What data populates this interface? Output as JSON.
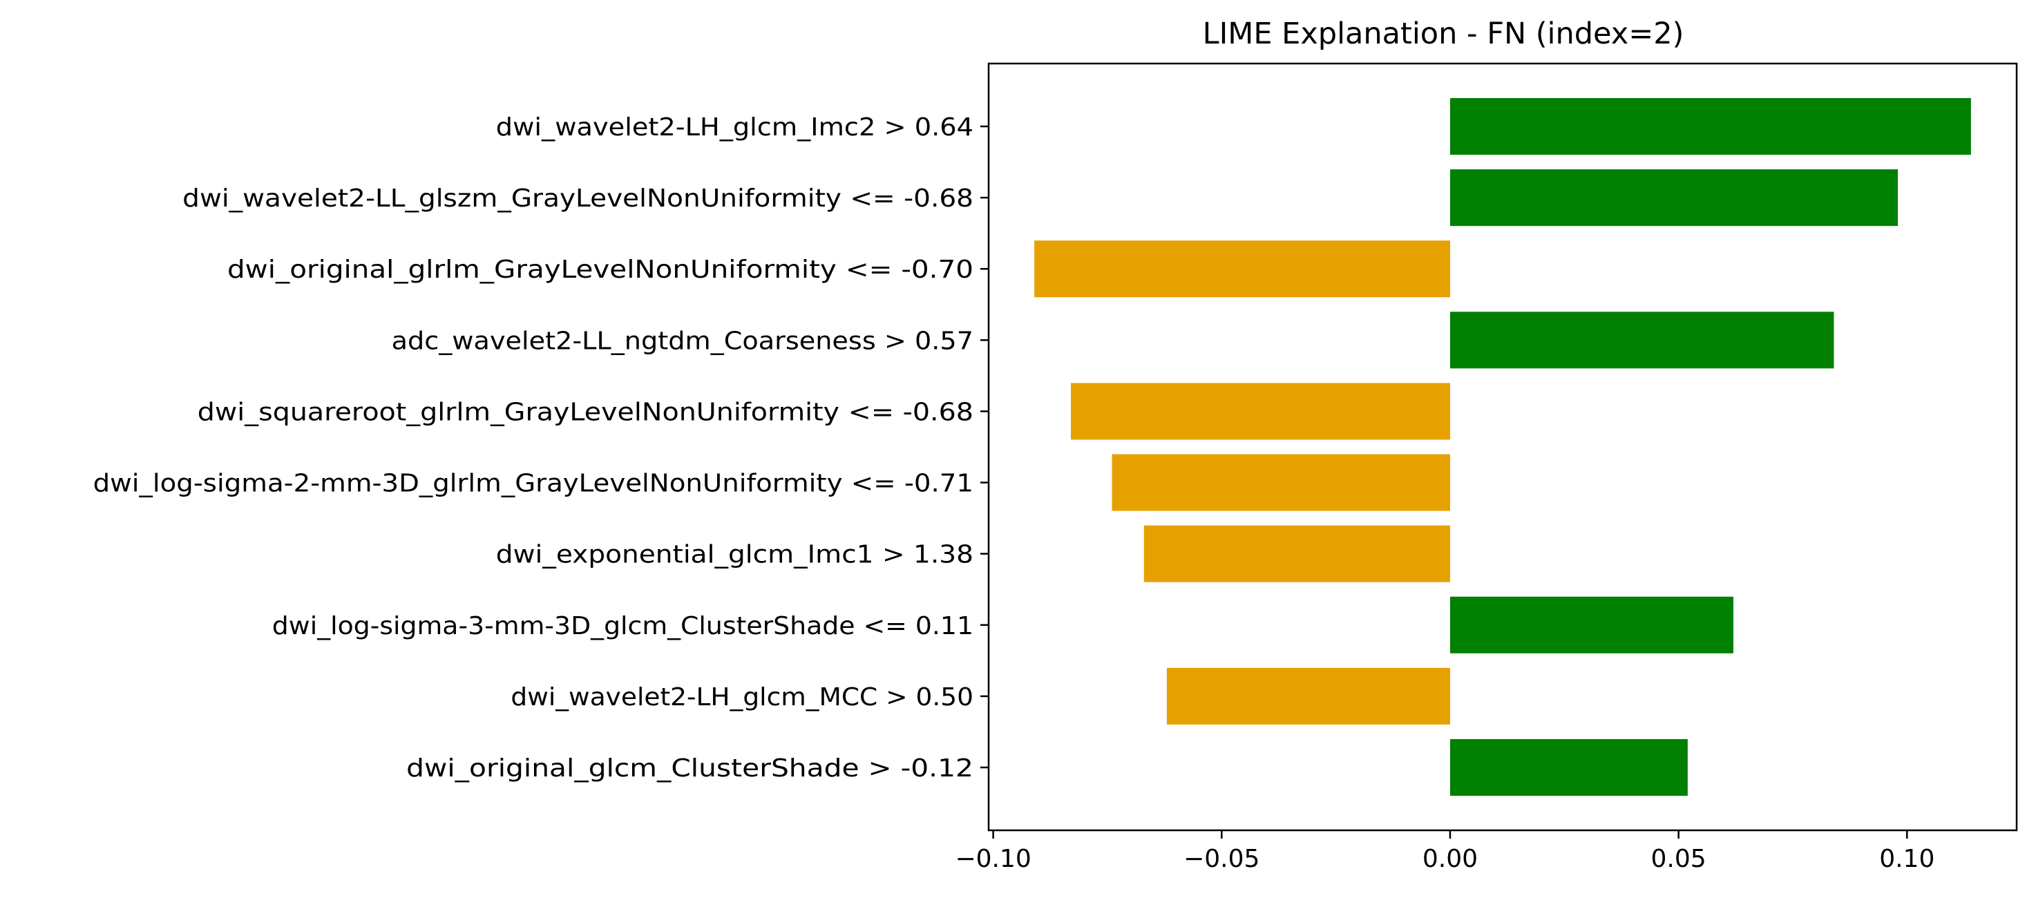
{
  "chart_data": {
    "type": "bar",
    "orientation": "horizontal",
    "title": "LIME Explanation - FN (index=2)",
    "xlabel": "",
    "ylabel": "",
    "xlim": [
      -0.101,
      0.124
    ],
    "xticks": [
      -0.1,
      -0.05,
      0.0,
      0.05,
      0.1
    ],
    "xtick_labels": [
      "−0.10",
      "−0.05",
      "0.00",
      "0.05",
      "0.10"
    ],
    "grid": false,
    "legend": "none",
    "colors": {
      "positive": "#008000",
      "negative": "#e6a000"
    },
    "categories": [
      "dwi_wavelet2-LH_glcm_Imc2 > 0.64",
      "dwi_wavelet2-LL_glszm_GrayLevelNonUniformity <= -0.68",
      "dwi_original_glrlm_GrayLevelNonUniformity <= -0.70",
      "adc_wavelet2-LL_ngtdm_Coarseness > 0.57",
      "dwi_squareroot_glrlm_GrayLevelNonUniformity <= -0.68",
      "dwi_log-sigma-2-mm-3D_glrlm_GrayLevelNonUniformity <= -0.71",
      "dwi_exponential_glcm_Imc1 > 1.38",
      "dwi_log-sigma-3-mm-3D_glcm_ClusterShade <= 0.11",
      "dwi_wavelet2-LH_glcm_MCC > 0.50",
      "dwi_original_glcm_ClusterShade > -0.12"
    ],
    "values": [
      0.114,
      0.098,
      -0.091,
      0.084,
      -0.083,
      -0.074,
      -0.067,
      0.062,
      -0.062,
      0.052
    ]
  }
}
